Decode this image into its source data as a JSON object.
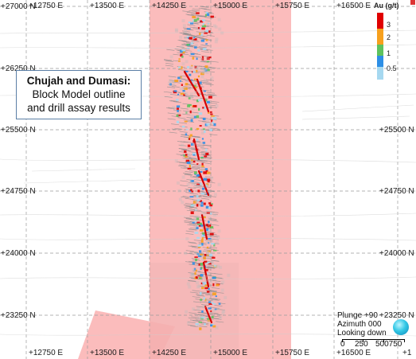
{
  "map": {
    "easting_labels": [
      "+12750 E",
      "+13500 E",
      "+14250 E",
      "+15000 E",
      "+15750 E",
      "+16500 E"
    ],
    "easting_bottom_partial": "+1",
    "northing_labels": [
      "+27000 N",
      "+26250 N",
      "+25500 N",
      "+24750 N",
      "+24000 N",
      "+23250 N"
    ],
    "info_box": {
      "title": "Chujah and Dumasi:",
      "line2": "Block Model outline",
      "line3": "and drill assay results"
    },
    "legend": {
      "title": "Au (g/t)",
      "ticks": [
        "3",
        "2",
        "1",
        "0.5"
      ],
      "colors": [
        "#e00000",
        "#f7a01d",
        "#5ec25e",
        "#2d8fe6",
        "#a6d8f0"
      ]
    },
    "view": {
      "plunge": "Plunge +90",
      "azimuth": "Azimuth 000",
      "looking": "Looking down"
    },
    "scale_bar": {
      "labels": [
        "0",
        "250",
        "500750"
      ]
    },
    "colors": {
      "block_model": "#f9a5a5",
      "grid": "#9a9a9a",
      "background": "#ffffff"
    }
  }
}
